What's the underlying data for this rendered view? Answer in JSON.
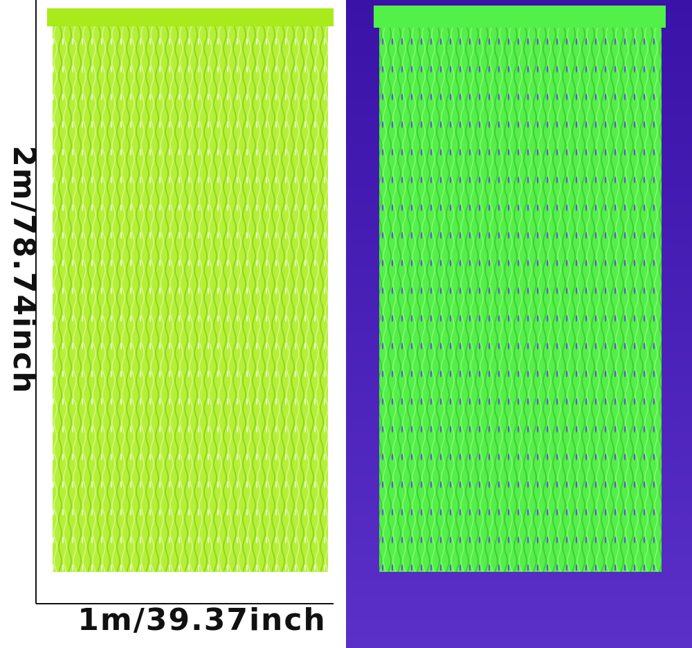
{
  "labels": {
    "height": "2m/78.74inch",
    "width": "1m/39.37inch"
  }
}
